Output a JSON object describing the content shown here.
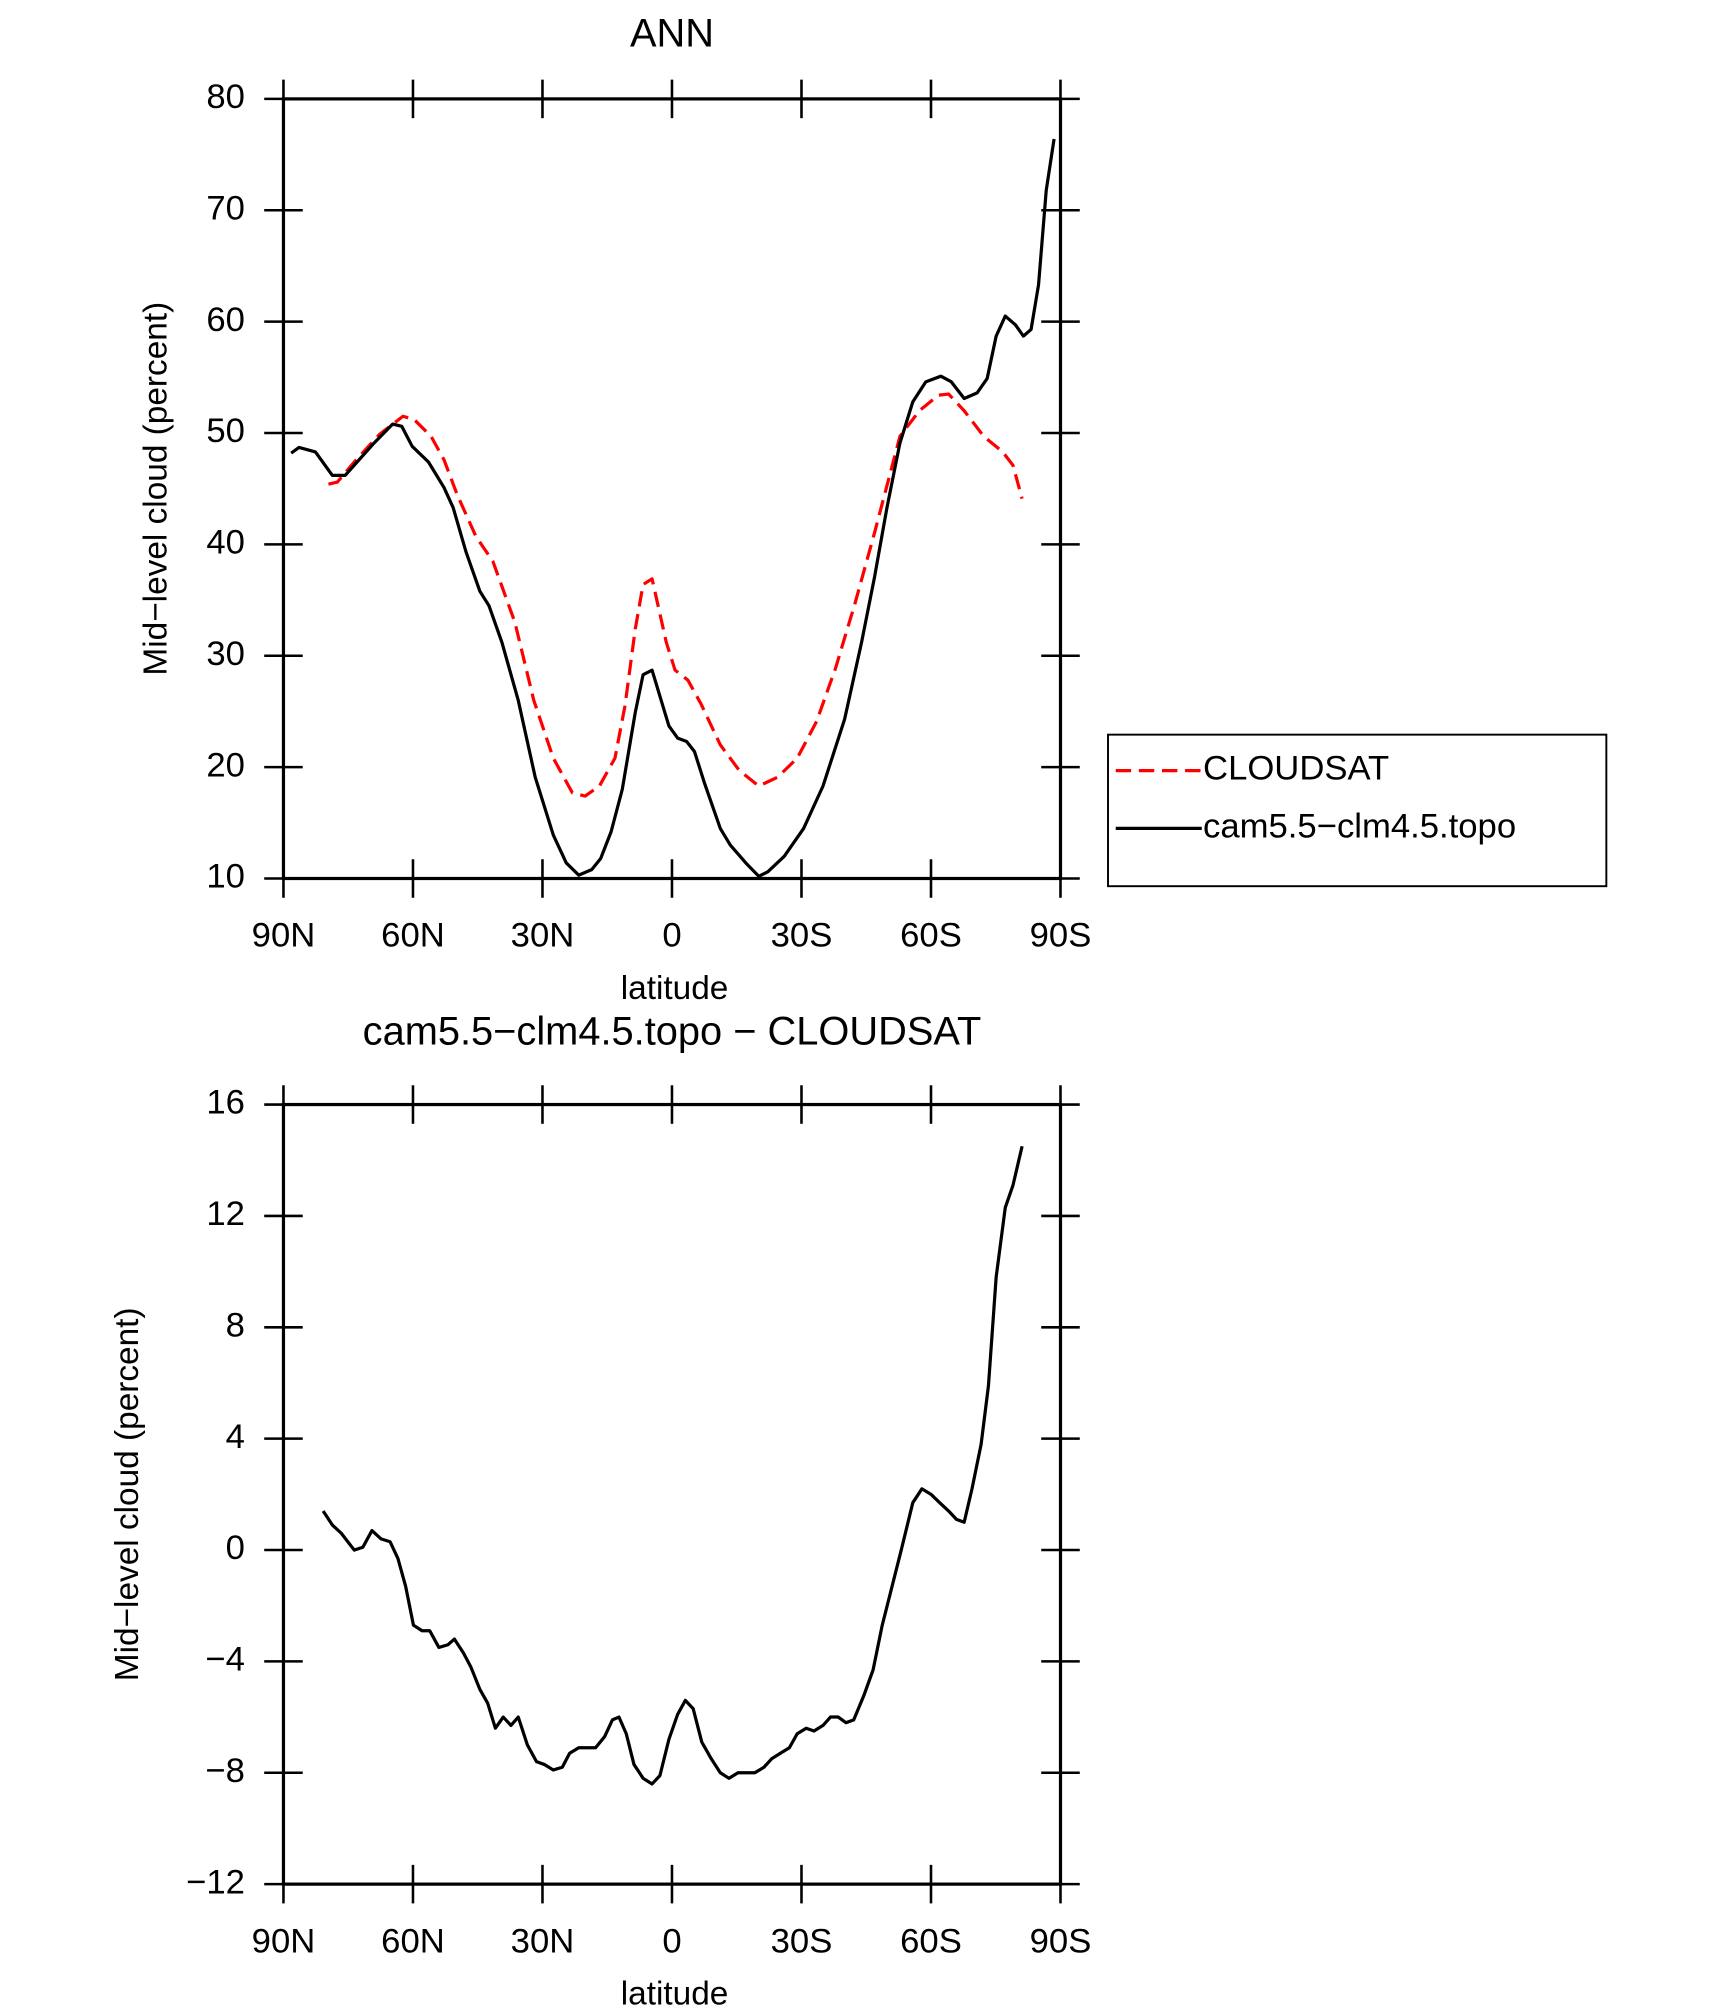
{
  "chart_data": [
    {
      "type": "line",
      "title": "ANN",
      "xlabel": "latitude",
      "ylabel": "Mid−level cloud (percent)",
      "xlim": [
        90,
        -90
      ],
      "xticks": [
        {
          "value": 90,
          "label": "90N"
        },
        {
          "value": 60,
          "label": "60N"
        },
        {
          "value": 30,
          "label": "30N"
        },
        0,
        {
          "value": -30,
          "label": "30S"
        },
        {
          "value": -60,
          "label": "60S"
        },
        {
          "value": -90,
          "label": "90S"
        }
      ],
      "ylim": [
        10,
        80
      ],
      "yticks": [
        10,
        20,
        30,
        40,
        50,
        60,
        70,
        80
      ],
      "legend": "right",
      "series": [
        {
          "name": "CLOUDSAT",
          "color": "#ff0000",
          "dash": true,
          "x": [
            79.6,
            77.5,
            73.6,
            67.7,
            62.3,
            59.7,
            55.8,
            52.8,
            49.8,
            45.4,
            41.5,
            36.4,
            32.0,
            27.5,
            23.1,
            20.1,
            16.8,
            13.2,
            10.9,
            8.5,
            6.7,
            4.6,
            1.3,
            -0.7,
            -3.7,
            -6.7,
            -11.2,
            -15.6,
            -20.1,
            -24.5,
            -29.0,
            -33.5,
            -37.9,
            -42.4,
            -46.9,
            -52.8,
            -57.3,
            -61.7,
            -64.1,
            -67.7,
            -72.2,
            -76.6,
            -79.0,
            -81.1
          ],
          "values": [
            45.4,
            45.6,
            47.4,
            49.9,
            51.5,
            51.2,
            49.7,
            47.6,
            44.5,
            40.7,
            38.5,
            33.0,
            26.0,
            20.8,
            17.7,
            17.4,
            18.3,
            20.8,
            25.5,
            32.4,
            36.4,
            36.9,
            31.2,
            28.7,
            27.8,
            25.7,
            22.0,
            19.7,
            18.3,
            19.1,
            20.8,
            24.1,
            28.9,
            34.7,
            41.0,
            49.7,
            52.0,
            53.4,
            53.5,
            52.0,
            49.7,
            48.3,
            47.1,
            44.1
          ]
        },
        {
          "name": "cam5.5−clm4.5.topo",
          "color": "#000000",
          "dash": false,
          "x": [
            88.2,
            86.4,
            82.6,
            78.7,
            75.7,
            69.0,
            64.7,
            62.6,
            60.2,
            56.4,
            52.8,
            50.7,
            47.7,
            44.5,
            42.4,
            39.4,
            35.6,
            31.7,
            27.5,
            24.5,
            21.6,
            18.6,
            16.5,
            14.1,
            11.5,
            8.5,
            6.7,
            4.6,
            0.7,
            -1.3,
            -3.4,
            -5.2,
            -7.6,
            -11.2,
            -13.5,
            -17.1,
            -20.1,
            -22.2,
            -26.0,
            -30.5,
            -35.0,
            -40.0,
            -43.9,
            -46.9,
            -49.8,
            -52.8,
            -55.8,
            -58.8,
            -62.3,
            -64.7,
            -67.7,
            -70.7,
            -73.0,
            -75.1,
            -77.2,
            -79.6,
            -81.4,
            -83.2,
            -84.9,
            -86.7,
            -88.5
          ],
          "values": [
            48.2,
            48.7,
            48.3,
            46.2,
            46.2,
            49.1,
            50.8,
            50.6,
            48.8,
            47.4,
            45.1,
            43.3,
            39.3,
            35.8,
            34.5,
            31.2,
            26.0,
            19.1,
            13.9,
            11.4,
            10.3,
            10.8,
            11.8,
            14.2,
            18.0,
            24.9,
            28.3,
            28.7,
            23.7,
            22.6,
            22.3,
            21.4,
            18.5,
            14.5,
            13.0,
            11.4,
            10.2,
            10.6,
            12.0,
            14.5,
            18.3,
            24.3,
            31.2,
            37.0,
            43.3,
            49.1,
            52.8,
            54.6,
            55.1,
            54.6,
            53.1,
            53.6,
            54.9,
            58.7,
            60.5,
            59.7,
            58.7,
            59.3,
            63.3,
            71.8,
            76.4
          ]
        }
      ]
    },
    {
      "type": "line",
      "title": "cam5.5−clm4.5.topo − CLOUDSAT",
      "xlabel": "latitude",
      "ylabel": "Mid−level cloud (percent)",
      "xlim": [
        90,
        -90
      ],
      "xticks": [
        {
          "value": 90,
          "label": "90N"
        },
        {
          "value": 60,
          "label": "60N"
        },
        {
          "value": 30,
          "label": "30N"
        },
        0,
        {
          "value": -30,
          "label": "30S"
        },
        {
          "value": -60,
          "label": "60S"
        },
        {
          "value": -90,
          "label": "90S"
        }
      ],
      "ylim": [
        -12,
        16
      ],
      "yticks": [
        {
          "value": -12,
          "label": "−12"
        },
        {
          "value": -8,
          "label": "−8"
        },
        {
          "value": -4,
          "label": "−4"
        },
        0,
        4,
        8,
        12,
        16
      ],
      "series": [
        {
          "color": "#000000",
          "dash": false,
          "x": [
            80.8,
            78.7,
            76.6,
            73.6,
            71.6,
            69.5,
            67.4,
            65.3,
            63.5,
            61.7,
            59.9,
            57.9,
            56.1,
            54.0,
            51.9,
            50.4,
            48.3,
            46.6,
            44.5,
            42.7,
            40.9,
            39.1,
            37.3,
            35.6,
            33.5,
            31.4,
            29.6,
            27.5,
            25.4,
            23.7,
            21.6,
            19.5,
            17.7,
            15.6,
            13.8,
            12.3,
            10.6,
            8.8,
            6.7,
            4.6,
            2.8,
            0.7,
            -1.3,
            -3.1,
            -4.9,
            -6.9,
            -9.1,
            -11.2,
            -13.2,
            -15.3,
            -17.1,
            -19.2,
            -21.3,
            -23.1,
            -25.1,
            -27.2,
            -29.0,
            -31.1,
            -32.9,
            -35.0,
            -36.7,
            -38.5,
            -40.3,
            -42.1,
            -44.5,
            -46.6,
            -48.7,
            -51.0,
            -53.1,
            -55.8,
            -57.9,
            -60.0,
            -62.0,
            -64.1,
            -65.9,
            -67.7,
            -69.5,
            -71.6,
            -73.3,
            -75.1,
            -77.2,
            -79.0,
            -81.1
          ],
          "values": [
            1.4,
            0.9,
            0.6,
            0.0,
            0.1,
            0.7,
            0.4,
            0.3,
            -0.3,
            -1.3,
            -2.7,
            -2.9,
            -2.9,
            -3.5,
            -3.4,
            -3.2,
            -3.7,
            -4.2,
            -5.0,
            -5.5,
            -6.4,
            -6.0,
            -6.3,
            -6.0,
            -7.0,
            -7.6,
            -7.7,
            -7.9,
            -7.8,
            -7.3,
            -7.1,
            -7.1,
            -7.1,
            -6.7,
            -6.1,
            -6.0,
            -6.6,
            -7.7,
            -8.2,
            -8.4,
            -8.1,
            -6.8,
            -5.9,
            -5.4,
            -5.7,
            -6.9,
            -7.5,
            -8.0,
            -8.2,
            -8.0,
            -8.0,
            -8.0,
            -7.8,
            -7.5,
            -7.3,
            -7.1,
            -6.6,
            -6.4,
            -6.5,
            -6.3,
            -6.0,
            -6.0,
            -6.2,
            -6.1,
            -5.2,
            -4.3,
            -2.7,
            -1.3,
            0.0,
            1.7,
            2.2,
            2.0,
            1.7,
            1.4,
            1.1,
            1.0,
            2.2,
            3.8,
            5.9,
            9.8,
            12.3,
            13.1,
            14.5
          ]
        }
      ]
    }
  ]
}
